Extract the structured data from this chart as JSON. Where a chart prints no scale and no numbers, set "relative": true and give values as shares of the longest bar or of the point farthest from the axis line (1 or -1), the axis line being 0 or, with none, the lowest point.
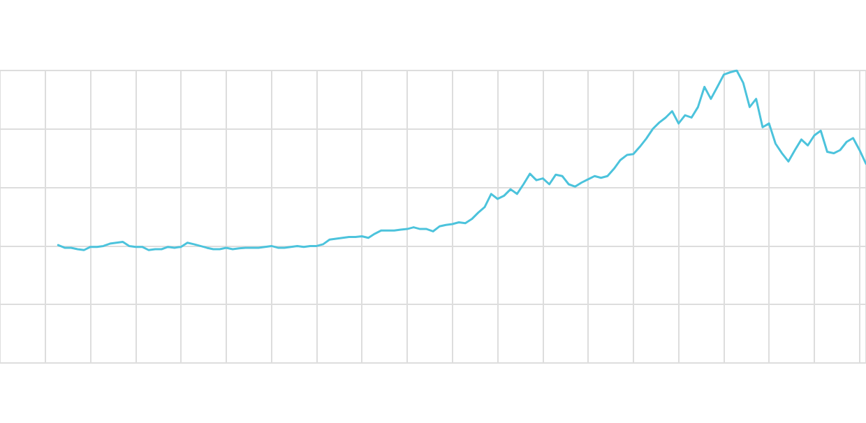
{
  "chart_data": {
    "type": "line",
    "relative": true,
    "grid": true,
    "marker": "none",
    "line_style": "solid",
    "categories": [
      null,
      null,
      null,
      null,
      null,
      null,
      null,
      null,
      null,
      null,
      null,
      null,
      null,
      null,
      null,
      null,
      null,
      null,
      null,
      null,
      null,
      null,
      null,
      null,
      null,
      null,
      null,
      null,
      null,
      null,
      null,
      null,
      null,
      null,
      null,
      null,
      null,
      null,
      null,
      null,
      null,
      null,
      null,
      null,
      null,
      null,
      null,
      null,
      null,
      null,
      null,
      null,
      null,
      null,
      null,
      null,
      null,
      null,
      null,
      null,
      null,
      null,
      null,
      null,
      null,
      null,
      null,
      null,
      null,
      null,
      null,
      null,
      null,
      null,
      null,
      null,
      null,
      null,
      null,
      null,
      null,
      null,
      null,
      null,
      null,
      null,
      null,
      null,
      null,
      null,
      null,
      null,
      null,
      null,
      null,
      null,
      null,
      null,
      null,
      null,
      null,
      null,
      null,
      null,
      null,
      null,
      null,
      null,
      null,
      null,
      null,
      null,
      null,
      null,
      null,
      null,
      null,
      null,
      null,
      null,
      null,
      null,
      null,
      null,
      null,
      null,
      null,
      null,
      null,
      null,
      null,
      null,
      null,
      null,
      null
    ],
    "series": [
      {
        "color": "#4cc3dc",
        "values": [
          null,
          null,
          null,
          null,
          null,
          null,
          null,
          null,
          null,
          0.403,
          0.394,
          0.394,
          0.389,
          0.386,
          0.397,
          0.397,
          0.4,
          0.408,
          0.411,
          0.414,
          0.4,
          0.397,
          0.397,
          0.386,
          0.389,
          0.389,
          0.397,
          0.394,
          0.397,
          0.411,
          0.406,
          0.4,
          0.394,
          0.389,
          0.389,
          0.394,
          0.389,
          0.392,
          0.394,
          0.394,
          0.394,
          0.397,
          0.4,
          0.394,
          0.394,
          0.397,
          0.4,
          0.397,
          0.4,
          0.4,
          0.406,
          0.422,
          0.425,
          0.428,
          0.431,
          0.431,
          0.433,
          0.428,
          0.442,
          0.453,
          0.453,
          0.453,
          0.456,
          0.458,
          0.464,
          0.458,
          0.458,
          0.45,
          0.467,
          0.472,
          0.475,
          0.481,
          0.478,
          0.492,
          0.514,
          0.533,
          0.578,
          0.561,
          0.572,
          0.594,
          0.578,
          0.611,
          0.647,
          0.625,
          0.631,
          0.611,
          0.644,
          0.639,
          0.611,
          0.603,
          0.617,
          0.628,
          0.639,
          0.633,
          0.639,
          0.664,
          0.694,
          0.711,
          0.714,
          0.739,
          0.767,
          0.8,
          0.822,
          0.839,
          0.861,
          0.819,
          0.847,
          0.839,
          0.875,
          0.944,
          0.903,
          0.944,
          0.986,
          0.994,
          1,
          0.958,
          0.875,
          0.903,
          0.806,
          0.819,
          0.75,
          0.717,
          0.689,
          0.728,
          0.764,
          0.744,
          0.778,
          0.794,
          0.722,
          0.717,
          0.728,
          0.756,
          0.769,
          0.728,
          0.681
        ]
      }
    ]
  }
}
